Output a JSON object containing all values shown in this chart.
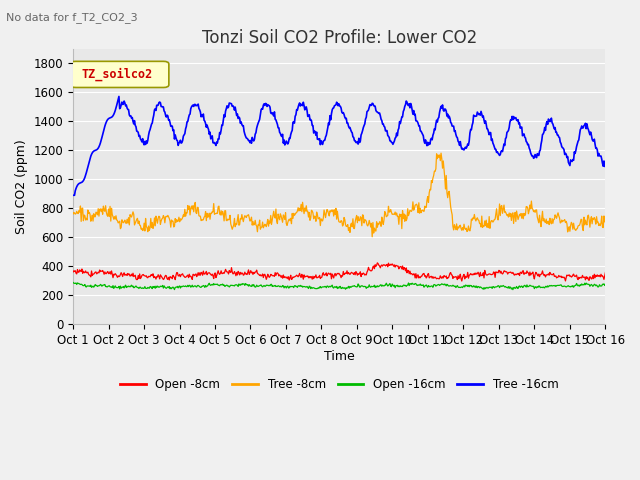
{
  "title": "Tonzi Soil CO2 Profile: Lower CO2",
  "subtitle": "No data for f_T2_CO2_3",
  "ylabel": "Soil CO2 (ppm)",
  "xlabel": "Time",
  "ylim": [
    0,
    1900
  ],
  "yticks": [
    0,
    200,
    400,
    600,
    800,
    1000,
    1200,
    1400,
    1600,
    1800
  ],
  "legend_label": "TZ_soilco2",
  "legend_entries": [
    "Open -8cm",
    "Tree -8cm",
    "Open -16cm",
    "Tree -16cm"
  ],
  "legend_colors": [
    "#ff0000",
    "#ffa500",
    "#00bb00",
    "#0000ff"
  ],
  "colors": {
    "open_8cm": "#ff0000",
    "tree_8cm": "#ffa500",
    "open_16cm": "#00bb00",
    "tree_16cm": "#0000ff"
  },
  "background_color": "#f0f0f0",
  "plot_bg_color": "#e8e8e8",
  "grid_color": "#ffffff",
  "n_points": 720,
  "xticklabels": [
    "Oct 1",
    "Oct 2",
    "Oct 3",
    "Oct 4",
    "Oct 5",
    "Oct 6",
    "Oct 7",
    "Oct 8",
    "Oct 9",
    "Oct 10",
    "Oct 11",
    "Oct 12",
    "Oct 13",
    "Oct 14",
    "Oct 15",
    "Oct 16"
  ],
  "title_fontsize": 12,
  "axis_label_fontsize": 9,
  "tick_fontsize": 8.5
}
